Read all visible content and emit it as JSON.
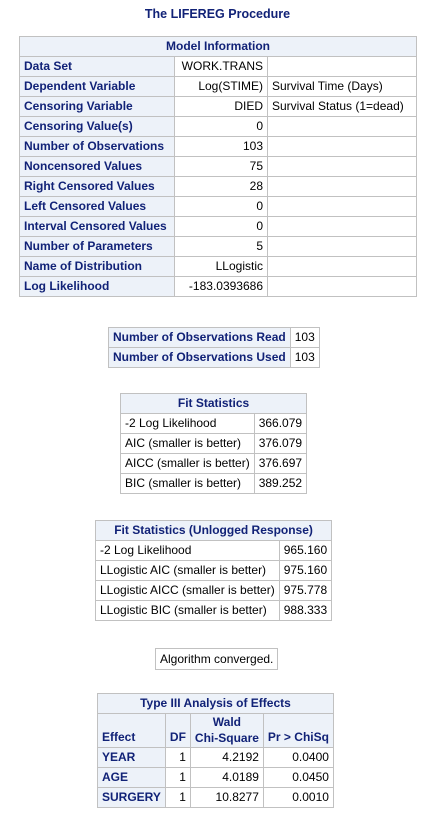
{
  "procedure_title": "The LIFEREG Procedure",
  "model_info": {
    "caption": "Model Information",
    "rows": [
      {
        "label": "Data Set",
        "value": "WORK.TRANS",
        "note": ""
      },
      {
        "label": "Dependent Variable",
        "value": "Log(STIME)",
        "note": "Survival Time (Days)"
      },
      {
        "label": "Censoring Variable",
        "value": "DIED",
        "note": "Survival Status (1=dead)"
      },
      {
        "label": "Censoring Value(s)",
        "value": "0",
        "note": ""
      },
      {
        "label": "Number of Observations",
        "value": "103",
        "note": ""
      },
      {
        "label": "Noncensored Values",
        "value": "75",
        "note": ""
      },
      {
        "label": "Right Censored Values",
        "value": "28",
        "note": ""
      },
      {
        "label": "Left Censored Values",
        "value": "0",
        "note": ""
      },
      {
        "label": "Interval Censored Values",
        "value": "0",
        "note": ""
      },
      {
        "label": "Number of Parameters",
        "value": "5",
        "note": ""
      },
      {
        "label": "Name of Distribution",
        "value": "LLogistic",
        "note": ""
      },
      {
        "label": "Log Likelihood",
        "value": "-183.0393686",
        "note": ""
      }
    ]
  },
  "observations": {
    "rows": [
      {
        "label": "Number of Observations Read",
        "value": "103"
      },
      {
        "label": "Number of Observations Used",
        "value": "103"
      }
    ]
  },
  "fit_statistics": {
    "caption": "Fit Statistics",
    "rows": [
      {
        "label": "-2 Log Likelihood",
        "value": "366.079"
      },
      {
        "label": "AIC (smaller is better)",
        "value": "376.079"
      },
      {
        "label": "AICC (smaller is better)",
        "value": "376.697"
      },
      {
        "label": "BIC (smaller is better)",
        "value": "389.252"
      }
    ]
  },
  "fit_statistics_unlogged": {
    "caption": "Fit Statistics (Unlogged Response)",
    "rows": [
      {
        "label": "-2 Log Likelihood",
        "value": "965.160"
      },
      {
        "label": "LLogistic AIC (smaller is better)",
        "value": "975.160"
      },
      {
        "label": "LLogistic AICC (smaller is better)",
        "value": "975.778"
      },
      {
        "label": "LLogistic BIC (smaller is better)",
        "value": "988.333"
      }
    ]
  },
  "convergence_status": "Algorithm converged.",
  "type3": {
    "caption": "Type III Analysis of Effects",
    "headers": {
      "effect": "Effect",
      "df": "DF",
      "wald_line1": "Wald",
      "wald_line2": "Chi-Square",
      "p": "Pr > ChiSq"
    },
    "rows": [
      {
        "effect": "YEAR",
        "df": "1",
        "chisq": "4.2192",
        "p": "0.0400"
      },
      {
        "effect": "AGE",
        "df": "1",
        "chisq": "4.0189",
        "p": "0.0450"
      },
      {
        "effect": "SURGERY",
        "df": "1",
        "chisq": "10.8277",
        "p": "0.0010"
      }
    ]
  },
  "colors": {
    "header_bg": "#edf2f9",
    "header_text": "#112277",
    "border": "#c1c1c1"
  }
}
